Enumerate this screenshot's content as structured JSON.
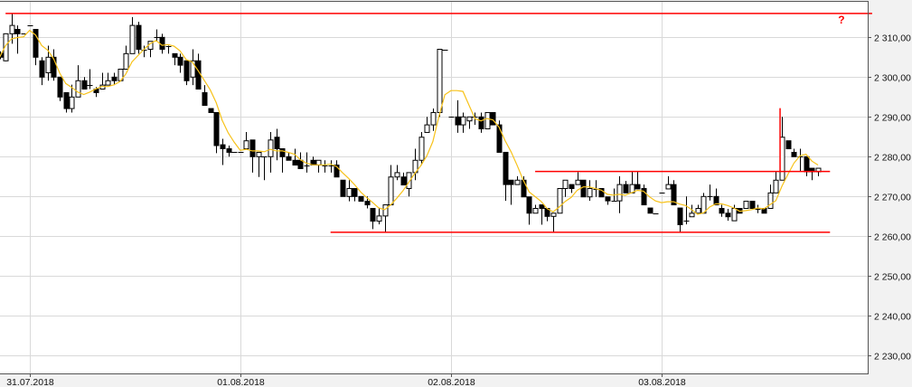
{
  "chart_data": {
    "type": "candlestick",
    "title": "",
    "xlabel": "",
    "ylabel": "",
    "ylim": [
      2227,
      2319.5
    ],
    "grid": true,
    "y_ticks": [
      2230,
      2240,
      2250,
      2260,
      2270,
      2280,
      2290,
      2300,
      2310
    ],
    "y_tick_labels": [
      "2 230,00",
      "2 240,00",
      "2 250,00",
      "2 260,00",
      "2 270,00",
      "2 280,00",
      "2 290,00",
      "2 300,00",
      "2 310,00"
    ],
    "x_tick_labels": [
      {
        "label": "31.07.2018",
        "candle": 6
      },
      {
        "label": "01.08.2018",
        "candle": 41
      },
      {
        "label": "02.08.2018",
        "candle": 76
      },
      {
        "label": "03.08.2018",
        "candle": 111
      }
    ],
    "ohlc_fields": [
      "open",
      "high",
      "low",
      "close"
    ],
    "candles": [
      [
        2306,
        2306.5,
        2304.5,
        2305
      ],
      [
        2304.1,
        2311,
        2304,
        2310.9
      ],
      [
        2310.9,
        2316.1,
        2308.4,
        2313
      ],
      [
        2312,
        2313,
        2305.9,
        2310.9
      ],
      [
        2310.9,
        2310.9,
        2310.9,
        2310.9
      ],
      [
        2313,
        2313,
        2313,
        2313
      ],
      [
        2312,
        2312,
        2303,
        2305
      ],
      [
        2304.1,
        2305,
        2298,
        2300
      ],
      [
        2301.1,
        2307.9,
        2299.1,
        2305
      ],
      [
        2305,
        2307,
        2299.1,
        2300
      ],
      [
        2300,
        2300,
        2294,
        2295
      ],
      [
        2296.1,
        2296.1,
        2291.1,
        2292.1
      ],
      [
        2292.1,
        2298.1,
        2291.1,
        2295
      ],
      [
        2295,
        2303,
        2295,
        2299.1
      ],
      [
        2299.1,
        2300,
        2297,
        2297
      ],
      [
        2298,
        2302,
        2297,
        2298
      ],
      [
        2297,
        2297.5,
        2295,
        2296.1
      ],
      [
        2297,
        2301.1,
        2297,
        2298
      ],
      [
        2298,
        2301.1,
        2298,
        2299.1
      ],
      [
        2300,
        2301.1,
        2298,
        2299.1
      ],
      [
        2299.1,
        2302,
        2299,
        2302
      ],
      [
        2302,
        2307.9,
        2302,
        2305.9
      ],
      [
        2305.9,
        2315.1,
        2305.9,
        2313
      ],
      [
        2313,
        2313.9,
        2305.9,
        2307
      ],
      [
        2307,
        2307.9,
        2305,
        2307
      ],
      [
        2307,
        2309,
        2305,
        2309
      ],
      [
        2310,
        2312,
        2309,
        2310
      ],
      [
        2310,
        2310.9,
        2305.9,
        2307
      ],
      [
        2307.9,
        2307.9,
        2305.9,
        2307.9
      ],
      [
        2305.9,
        2305.9,
        2303,
        2305
      ],
      [
        2305,
        2305.9,
        2301.1,
        2303
      ],
      [
        2304.1,
        2304.1,
        2298,
        2299.1
      ],
      [
        2300,
        2307,
        2298,
        2304.1
      ],
      [
        2304.1,
        2305.9,
        2297,
        2297
      ],
      [
        2296.1,
        2298,
        2292.9,
        2292.9
      ],
      [
        2292.1,
        2292.1,
        2291.1,
        2291.1
      ],
      [
        2291.1,
        2291.1,
        2280.9,
        2282.8
      ],
      [
        2283,
        2284.5,
        2277.9,
        2282
      ],
      [
        2282,
        2282.8,
        2280,
        2281.1
      ],
      [
        2281.1,
        2281.1,
        2281.1,
        2281.1
      ],
      [
        2281.1,
        2281.1,
        2281.1,
        2281.1
      ],
      [
        2282,
        2286.2,
        2282,
        2284
      ],
      [
        2284.2,
        2284.2,
        2276,
        2280
      ],
      [
        2280,
        2281.1,
        2274.9,
        2281.1
      ],
      [
        2280,
        2280,
        2274.1,
        2280
      ],
      [
        2280,
        2286.2,
        2276,
        2284.2
      ],
      [
        2284.9,
        2287,
        2279.1,
        2282
      ],
      [
        2282,
        2282,
        2276,
        2280
      ],
      [
        2280,
        2281.1,
        2279.1,
        2279.1
      ],
      [
        2279.1,
        2282,
        2277.9,
        2277.9
      ],
      [
        2279.1,
        2281.1,
        2277,
        2277
      ],
      [
        2277.9,
        2281.1,
        2276,
        2277.9
      ],
      [
        2279.1,
        2280,
        2277.9,
        2277.9
      ],
      [
        2277.9,
        2279.1,
        2276,
        2279.1
      ],
      [
        2277.9,
        2279.1,
        2276,
        2277.9
      ],
      [
        2277.9,
        2279.1,
        2276,
        2277.9
      ],
      [
        2277.9,
        2279.1,
        2274.9,
        2274.9
      ],
      [
        2274.1,
        2274.1,
        2270,
        2270
      ],
      [
        2270,
        2274.1,
        2268.8,
        2272
      ],
      [
        2272,
        2272,
        2268.8,
        2270
      ],
      [
        2270,
        2270,
        2268.8,
        2268.8
      ],
      [
        2268.8,
        2270,
        2267,
        2267.9
      ],
      [
        2267,
        2267,
        2261.8,
        2263.8
      ],
      [
        2263.8,
        2267,
        2263,
        2265.1
      ],
      [
        2265.1,
        2267.9,
        2261,
        2267.9
      ],
      [
        2267.9,
        2277.9,
        2267.9,
        2274.9
      ],
      [
        2274.9,
        2277.9,
        2274.1,
        2276
      ],
      [
        2274.9,
        2276,
        2272.9,
        2272.9
      ],
      [
        2272,
        2276,
        2270,
        2276
      ],
      [
        2276,
        2282,
        2274.1,
        2279.1
      ],
      [
        2279.1,
        2286.2,
        2277.9,
        2284.9
      ],
      [
        2286.1,
        2290,
        2286.1,
        2288
      ],
      [
        2288,
        2292.1,
        2286.5,
        2291.1
      ],
      [
        2291.1,
        2307,
        2290,
        2307
      ],
      [
        2307,
        2307,
        2307,
        2307
      ],
      [
        2290,
        2290,
        2290,
        2290
      ],
      [
        2290,
        2294.2,
        2286,
        2288
      ],
      [
        2288,
        2291.1,
        2286,
        2290
      ],
      [
        2289,
        2290,
        2287,
        2290
      ],
      [
        2290,
        2291.1,
        2288,
        2290
      ],
      [
        2290,
        2291.1,
        2286,
        2287
      ],
      [
        2287,
        2291.1,
        2287,
        2291.1
      ],
      [
        2291.1,
        2291.1,
        2288,
        2288
      ],
      [
        2288,
        2289.1,
        2281.1,
        2281.1
      ],
      [
        2281.1,
        2281.1,
        2268.9,
        2273
      ],
      [
        2274.1,
        2274.1,
        2267.9,
        2273
      ],
      [
        2273,
        2275.1,
        2273,
        2274.1
      ],
      [
        2274.1,
        2275.1,
        2269.9,
        2269.9
      ],
      [
        2269.9,
        2269.9,
        2262.9,
        2265.8
      ],
      [
        2265.8,
        2267.9,
        2265.8,
        2267
      ],
      [
        2267.9,
        2267.9,
        2262.9,
        2267
      ],
      [
        2267,
        2267,
        2263.8,
        2265
      ],
      [
        2265,
        2265.8,
        2261.1,
        2265.8
      ],
      [
        2265.8,
        2272,
        2265.8,
        2272
      ],
      [
        2272,
        2274.1,
        2269.9,
        2274.1
      ],
      [
        2273,
        2273,
        2270.9,
        2272
      ],
      [
        2273,
        2276.1,
        2273,
        2274.1
      ],
      [
        2274.1,
        2274.1,
        2269.9,
        2269.9
      ],
      [
        2269.9,
        2274.1,
        2268.9,
        2272
      ],
      [
        2272,
        2274.1,
        2269.9,
        2272
      ],
      [
        2272,
        2272,
        2269.9,
        2269.9
      ],
      [
        2269.9,
        2269.9,
        2267.9,
        2268.9
      ],
      [
        2268.9,
        2272,
        2268.9,
        2268.9
      ],
      [
        2268.9,
        2275.1,
        2265.8,
        2273
      ],
      [
        2273,
        2273.9,
        2270.9,
        2270.9
      ],
      [
        2270.9,
        2276.2,
        2270.9,
        2273
      ],
      [
        2273,
        2276.2,
        2271.9,
        2271.9
      ],
      [
        2272,
        2273,
        2267.9,
        2267.9
      ],
      [
        2267.1,
        2267.1,
        2265.8,
        2265.8
      ],
      [
        2265.8,
        2265.8,
        2265.8,
        2265.8
      ],
      [
        2270.9,
        2270.9,
        2270.9,
        2270.9
      ],
      [
        2271.9,
        2275.1,
        2271.9,
        2273
      ],
      [
        2273,
        2274.1,
        2267.9,
        2267.9
      ],
      [
        2267.1,
        2267.1,
        2261.1,
        2262.9
      ],
      [
        2263.9,
        2270,
        2263,
        2263.9
      ],
      [
        2264.9,
        2267.9,
        2264.9,
        2265.8
      ],
      [
        2265.8,
        2267.9,
        2265.8,
        2267
      ],
      [
        2265.8,
        2270.9,
        2265.8,
        2270
      ],
      [
        2270,
        2273,
        2269,
        2270
      ],
      [
        2270,
        2272,
        2267.9,
        2267.9
      ],
      [
        2267,
        2267.9,
        2264.9,
        2265.8
      ],
      [
        2265.8,
        2266.9,
        2263.9,
        2264.9
      ],
      [
        2263.9,
        2267.9,
        2263.9,
        2267
      ],
      [
        2267,
        2267,
        2265.8,
        2265.8
      ],
      [
        2267,
        2268.8,
        2267,
        2268.8
      ],
      [
        2268.8,
        2268.8,
        2267,
        2267
      ],
      [
        2267,
        2267.9,
        2265.8,
        2267
      ],
      [
        2267,
        2267,
        2265.8,
        2265.8
      ],
      [
        2267,
        2273,
        2267,
        2270.9
      ],
      [
        2270.9,
        2276.2,
        2270.9,
        2274.1
      ],
      [
        2274.1,
        2290,
        2274.1,
        2284.9
      ],
      [
        2284,
        2284,
        2282,
        2282
      ],
      [
        2281.1,
        2282,
        2280,
        2280
      ],
      [
        2280,
        2282,
        2276.2,
        2280
      ],
      [
        2280,
        2280,
        2275.1,
        2276.2
      ],
      [
        2277.1,
        2277.1,
        2274.1,
        2276.2
      ],
      [
        2276.2,
        2277.1,
        2275.1,
        2277.1
      ]
    ],
    "moving_average": {
      "period": 5,
      "color": "#f7c21a"
    },
    "annotations": {
      "horizontal_lines": [
        {
          "price": 2316.0,
          "from_candle": 2,
          "to_candle": 146
        },
        {
          "price": 2276.3,
          "from_candle": 90,
          "to_candle": 139
        },
        {
          "price": 2261.0,
          "from_candle": 56,
          "to_candle": 139
        }
      ],
      "vertical_lines": [
        {
          "candle": 130.7,
          "from_price": 2276.2,
          "to_price": 2292.2
        }
      ],
      "question_mark": {
        "text": "?",
        "candle": 140.9,
        "price": 2314.6
      },
      "line_color": "#ff0000"
    },
    "colors": {
      "up_body": "#ffffff",
      "down_body": "#000000",
      "outline": "#000000",
      "grid": "#d9d9d9",
      "background": "#ffffff",
      "axis_bg": "#f2f2f2"
    }
  }
}
